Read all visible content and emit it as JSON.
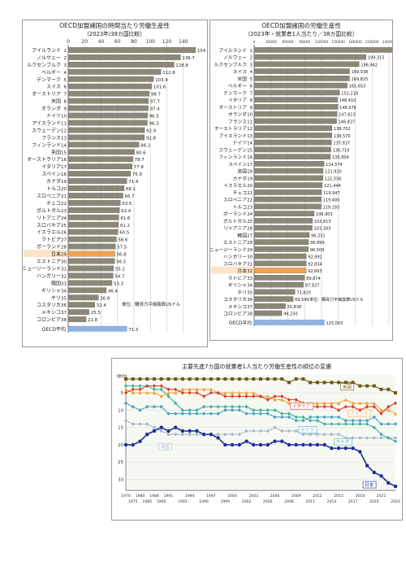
{
  "colors": {
    "bar": "#8c8778",
    "bar_stroke": "#5e5a4e",
    "japan": "#f3a24a",
    "avg": "#8fb3e2",
    "grid": "#c8c8c8",
    "axis": "#555555",
    "bg3": "#f6f9f2",
    "usa": "#6b5a14",
    "italy": "#d83b2a",
    "france": "#f0a13a",
    "germany": "#4aa0c0",
    "canada": "#3db0a0",
    "uk": "#a8b6cc",
    "japan_line": "#1c2a9a"
  },
  "chart_data": [
    {
      "type": "bar",
      "title": "OECD加盟諸国の時間当たり労働生産性",
      "subtitle": "（2023年/38カ国比較）",
      "xlim": [
        0,
        160
      ],
      "xticks": [
        0,
        20,
        40,
        60,
        80,
        100,
        120,
        140
      ],
      "note": "単位：購買力平価換算USドル",
      "categories": [
        "アイルランド",
        "ノルウェー",
        "ルクセンブルク",
        "ベルギー",
        "デンマーク",
        "スイス",
        "オーストリア",
        "米国",
        "オランダ",
        "ドイツ",
        "アイスランド",
        "スウェーデン",
        "フランス",
        "フィンランド",
        "英国",
        "オーストラリア",
        "イタリア",
        "スペイン",
        "カナダ",
        "トルコ",
        "スロベニア",
        "チェコ",
        "ポルトガル",
        "リトアニア",
        "スロバキア",
        "イスラエル",
        "ラトビア",
        "ポーランド",
        "日本",
        "エストニア",
        "ニュージーランド",
        "ハンガリー",
        "韓国",
        "ギリシャ",
        "チリ",
        "コスタリカ",
        "メキシコ",
        "コロンビア"
      ],
      "ranks": [
        "1",
        "2",
        "3",
        "4",
        "5",
        "6",
        "7",
        "8",
        "9",
        "10",
        "11",
        "12",
        "13",
        "14",
        "15",
        "16",
        "17",
        "18",
        "19",
        "20",
        "21",
        "22",
        "23",
        "24",
        "25",
        "26",
        "27",
        "28",
        "29",
        "30",
        "31",
        "32",
        "33",
        "34",
        "35",
        "36",
        "37",
        "38"
      ],
      "values": [
        154.9,
        136.7,
        128.8,
        112.8,
        103.9,
        101.6,
        98.7,
        97.7,
        97.4,
        96.5,
        96.3,
        92.9,
        92.8,
        86.2,
        80.6,
        78.7,
        77.8,
        75.9,
        71.4,
        68.1,
        66.7,
        63.5,
        62.4,
        61.6,
        61.2,
        60.5,
        58.6,
        57.5,
        56.8,
        56.5,
        55.2,
        54.7,
        53.3,
        46.4,
        36.8,
        32.4,
        25.5,
        21.8
      ],
      "average": {
        "label": "OECD平均",
        "value": 71.3
      },
      "highlight": "日本"
    },
    {
      "type": "bar",
      "title": "OECD加盟諸国の労働生産性",
      "subtitle": "（2023年・就業者1人当たり／38カ国比較）",
      "xlim": [
        0,
        240000
      ],
      "xticks": [
        0,
        30000,
        60000,
        90000,
        120000,
        150000,
        180000,
        210000,
        240000
      ],
      "note": "単位：購買力平価換算USドル",
      "categories": [
        "アイルランド",
        "ノルウェー",
        "ルクセンブルク",
        "スイス",
        "米国",
        "ベルギー",
        "デンマーク",
        "イタリア",
        "オーストリア",
        "オランダ",
        "フランス",
        "オーストラリア",
        "アイスランド",
        "ドイツ",
        "スウェーデン",
        "フィンランド",
        "スペイン",
        "英国",
        "カナダ",
        "イスラエル",
        "チェコ",
        "スロベニア",
        "トルコ",
        "ポーランド",
        "ポルトガル",
        "リトアニア",
        "韓国",
        "エストニア",
        "ニュージーランド",
        "ハンガリー",
        "スロバキア",
        "日本",
        "ラトビア",
        "ギリシャ",
        "チリ",
        "コスタリカ",
        "メキシコ",
        "コロンビア"
      ],
      "ranks": [
        "1",
        "2",
        "3",
        "4",
        "5",
        "6",
        "7",
        "8",
        "9",
        "10",
        "11",
        "12",
        "13",
        "14",
        "15",
        "16",
        "17",
        "18",
        "19",
        "20",
        "21",
        "22",
        "23",
        "24",
        "25",
        "26",
        "27",
        "28",
        "29",
        "30",
        "31",
        "32",
        "33",
        "34",
        "35",
        "36",
        "37",
        "38"
      ],
      "values": [
        255760,
        199315,
        186942,
        169938,
        169825,
        165653,
        152219,
        148410,
        148976,
        147613,
        146837,
        138702,
        138570,
        137937,
        136719,
        135854,
        124574,
        122910,
        122556,
        121444,
        119947,
        119400,
        119193,
        106903,
        103813,
        103383,
        98331,
        96899,
        96509,
        92992,
        92834,
        92663,
        89874,
        87927,
        72820,
        69549,
        55838,
        49250
      ],
      "value_labels": [
        "255,760",
        "199,315",
        "186,942",
        "169,938",
        "169,825",
        "165,653",
        "152,219",
        "148,410",
        "148,976",
        "147,613",
        "146,837",
        "138,702",
        "138,570",
        "137,937",
        "136,719",
        "135,854",
        "124,574",
        "122,910",
        "122,556",
        "121,444",
        "119,947",
        "119,400",
        "119,193",
        "106,903",
        "103,813",
        "103,383",
        "98,331",
        "96,899",
        "96,509",
        "92,992",
        "92,834",
        "92,663",
        "89,874",
        "87,927",
        "72,820",
        "69,549",
        "55,838",
        "49,250"
      ],
      "average": {
        "label": "OECD平均",
        "value": 125003,
        "value_label": "125,003"
      },
      "highlight": "日本"
    },
    {
      "type": "line",
      "title": "主要先進7カ国の就業者1人当たり労働生産性の順位の変遷",
      "ylabel": "（順位）",
      "ylim": [
        1,
        32
      ],
      "yticks": [
        5,
        10,
        15,
        20,
        25,
        30
      ],
      "x": [
        1970,
        1975,
        1980,
        1985,
        1988,
        1990,
        1991,
        1992,
        1993,
        1994,
        1995,
        1996,
        1997,
        1998,
        1999,
        2000,
        2001,
        2002,
        2003,
        2004,
        2005,
        2006,
        2007,
        2008,
        2009,
        2010,
        2011,
        2012,
        2013,
        2014,
        2015,
        2016,
        2017,
        2018,
        2019,
        2020,
        2021,
        2022,
        2023
      ],
      "xtick_labels_top": [
        "1970",
        "1980",
        "1988",
        "1991",
        "1994",
        "1997",
        "2000",
        "2003",
        "2006",
        "2009",
        "2012",
        "2015",
        "2018",
        "2021"
      ],
      "xtick_labels_bottom": [
        "1975",
        "1985",
        "1990",
        "1993",
        "1996",
        "1999",
        "2002",
        "2005",
        "2008",
        "2011",
        "2014",
        "2017",
        "2020",
        "2023"
      ],
      "series": [
        {
          "name": "米国",
          "values": [
            1,
            1,
            1,
            1,
            1,
            1,
            1,
            1,
            1,
            1,
            1,
            1,
            1,
            1,
            1,
            1,
            1,
            1,
            1,
            1,
            1,
            1,
            1,
            2,
            1,
            1,
            2,
            2,
            2,
            2,
            2,
            2,
            2,
            3,
            3,
            3,
            4,
            4,
            5
          ]
        },
        {
          "name": "イタリア",
          "values": [
            5,
            4,
            4,
            3,
            3,
            3,
            4,
            4,
            5,
            5,
            5,
            6,
            5,
            5,
            6,
            6,
            6,
            6,
            6,
            6,
            7,
            6,
            6,
            7,
            7,
            8,
            9,
            9,
            9,
            9,
            10,
            9,
            9,
            10,
            9,
            9,
            11,
            9,
            8
          ]
        },
        {
          "name": "フランス",
          "values": [
            4,
            5,
            5,
            5,
            5,
            6,
            5,
            5,
            4,
            4,
            4,
            4,
            4,
            5,
            5,
            5,
            5,
            5,
            5,
            6,
            6,
            7,
            7,
            8,
            8,
            9,
            8,
            8,
            8,
            8,
            8,
            7,
            8,
            8,
            8,
            8,
            10,
            10,
            11
          ]
        },
        {
          "name": "ドイツ",
          "values": [
            8,
            9,
            10,
            9,
            9,
            9,
            11,
            11,
            11,
            11,
            11,
            11,
            11,
            11,
            10,
            10,
            10,
            11,
            11,
            11,
            11,
            12,
            12,
            12,
            13,
            13,
            12,
            12,
            12,
            12,
            12,
            13,
            13,
            13,
            13,
            12,
            14,
            14,
            14
          ]
        },
        {
          "name": "カナダ",
          "values": [
            3,
            3,
            3,
            3,
            4,
            4,
            6,
            8,
            10,
            10,
            10,
            9,
            9,
            9,
            9,
            9,
            9,
            9,
            10,
            10,
            10,
            10,
            11,
            11,
            12,
            12,
            13,
            13,
            14,
            14,
            14,
            14,
            14,
            14,
            14,
            15,
            17,
            18,
            19
          ]
        },
        {
          "name": "英国",
          "values": [
            13,
            14,
            14,
            14,
            15,
            16,
            17,
            17,
            17,
            17,
            17,
            17,
            17,
            17,
            17,
            17,
            17,
            16,
            16,
            16,
            16,
            15,
            16,
            16,
            16,
            17,
            17,
            17,
            17,
            17,
            17,
            18,
            18,
            18,
            18,
            18,
            18,
            18,
            18
          ]
        },
        {
          "name": "日本",
          "values": [
            20,
            20,
            19,
            17,
            16,
            15,
            16,
            15,
            16,
            16,
            16,
            17,
            17,
            18,
            20,
            20,
            20,
            19,
            20,
            20,
            20,
            19,
            19,
            20,
            20,
            20,
            20,
            20,
            20,
            21,
            21,
            21,
            21,
            22,
            26,
            28,
            29,
            31,
            32
          ]
        }
      ]
    }
  ]
}
